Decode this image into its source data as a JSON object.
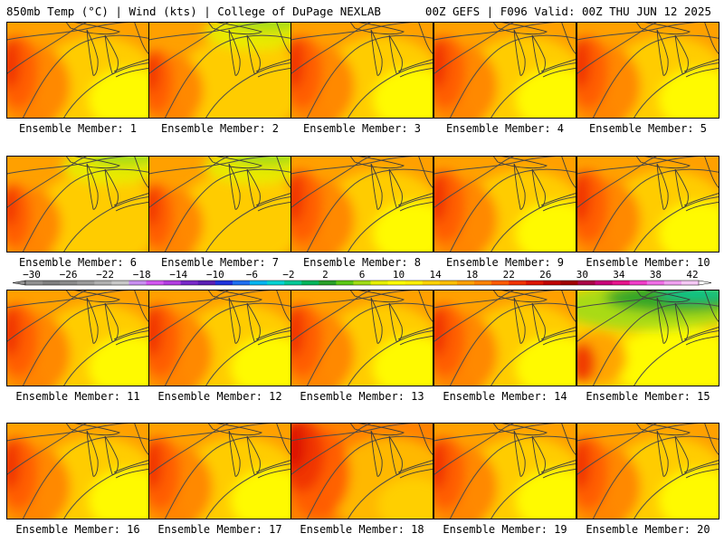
{
  "header": {
    "left": "850mb Temp (°C) | Wind (kts) | College of DuPage NEXLAB",
    "right": "00Z GEFS | F096 Valid: 00Z THU JUN 12 2025"
  },
  "members": [
    {
      "label": "Ensemble Member: 1",
      "variant": "warm-west"
    },
    {
      "label": "Ensemble Member: 2",
      "variant": "cool-north"
    },
    {
      "label": "Ensemble Member: 3",
      "variant": "warm-west"
    },
    {
      "label": "Ensemble Member: 4",
      "variant": "warm-west"
    },
    {
      "label": "Ensemble Member: 5",
      "variant": "warm-west"
    },
    {
      "label": "Ensemble Member: 6",
      "variant": "cool-north"
    },
    {
      "label": "Ensemble Member: 7",
      "variant": "cool-north"
    },
    {
      "label": "Ensemble Member: 8",
      "variant": "warm-west"
    },
    {
      "label": "Ensemble Member: 9",
      "variant": "warm-west"
    },
    {
      "label": "Ensemble Member: 10",
      "variant": "warm-west"
    },
    {
      "label": "Ensemble Member: 11",
      "variant": "warm-west"
    },
    {
      "label": "Ensemble Member: 12",
      "variant": "warm-west"
    },
    {
      "label": "Ensemble Member: 13",
      "variant": "warm-west"
    },
    {
      "label": "Ensemble Member: 14",
      "variant": "warm-west"
    },
    {
      "label": "Ensemble Member: 15",
      "variant": "cold-north"
    },
    {
      "label": "Ensemble Member: 16",
      "variant": "warm-west"
    },
    {
      "label": "Ensemble Member: 17",
      "variant": "warm-west"
    },
    {
      "label": "Ensemble Member: 18",
      "variant": "hot-west"
    },
    {
      "label": "Ensemble Member: 19",
      "variant": "warm-west"
    },
    {
      "label": "Ensemble Member: 20",
      "variant": "warm-west"
    }
  ],
  "colorbar": {
    "ticks": [
      "-30",
      "-26",
      "-22",
      "-18",
      "-14",
      "-10",
      "-6",
      "-2",
      "2",
      "6",
      "10",
      "14",
      "18",
      "22",
      "26",
      "30",
      "34",
      "38",
      "42"
    ],
    "colors": [
      "#8f8f8f",
      "#7f7f7f",
      "#8a8a8a",
      "#9a9a9a",
      "#b0b0b0",
      "#c8c8c8",
      "#c88ef0",
      "#d255f0",
      "#b23ce0",
      "#7828c8",
      "#5a1eb4",
      "#1e32dc",
      "#1e6ef0",
      "#00b4f0",
      "#00d2d2",
      "#00c896",
      "#00b45a",
      "#28a028",
      "#5ac814",
      "#a0dc14",
      "#e6f000",
      "#ffff00",
      "#fff000",
      "#ffd200",
      "#ffbe00",
      "#ffa000",
      "#ff8200",
      "#ff5a00",
      "#f03200",
      "#dc1400",
      "#be0000",
      "#a00000",
      "#aa0046",
      "#c80078",
      "#e6148c",
      "#f03cc8",
      "#f06ee6",
      "#f0a0f0",
      "#f5c8f5"
    ]
  }
}
